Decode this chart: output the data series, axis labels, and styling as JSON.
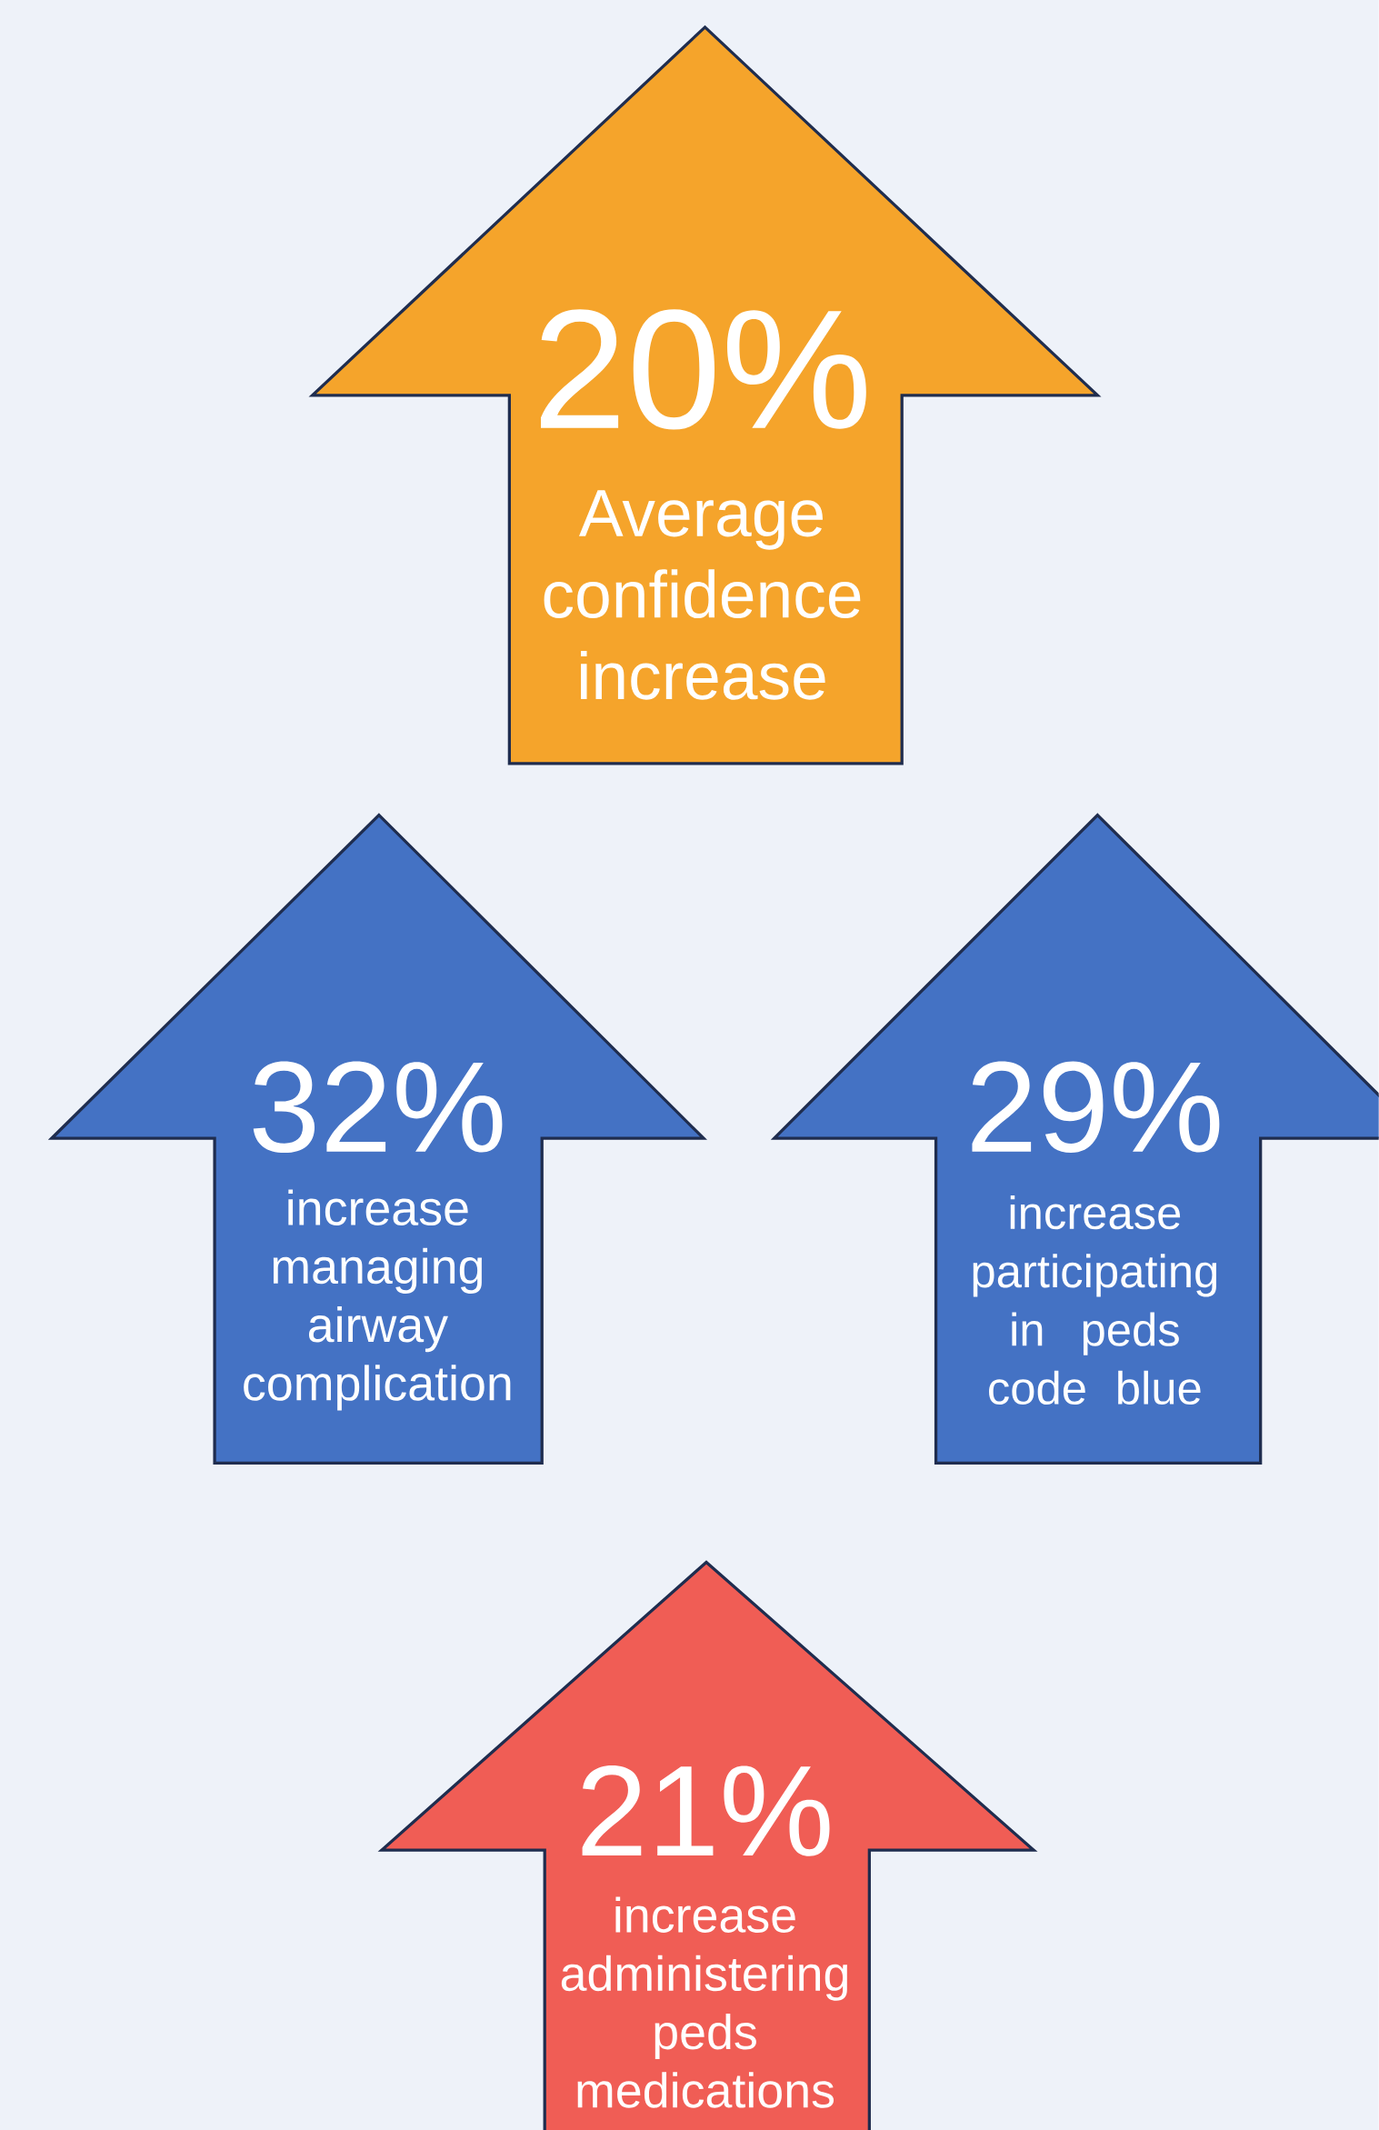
{
  "chart_data": {
    "type": "other",
    "categories": [
      "Average confidence increase",
      "increase managing airway complication",
      "increase participating in peds code blue",
      "increase administering peds medications"
    ],
    "values": [
      20,
      32,
      29,
      21
    ],
    "data_labels": true,
    "ylabel": "%",
    "colors": [
      "#f5a42b",
      "#4472c4",
      "#4472c4",
      "#f05d55"
    ]
  }
}
